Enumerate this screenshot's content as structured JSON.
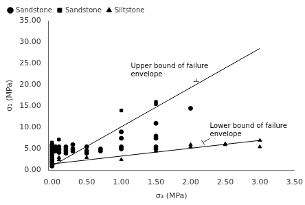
{
  "chart_data": {
    "type": "scatter",
    "xlabel": "σ₃ (MPa)",
    "ylabel": "σ₁ (MPa)",
    "xlim": [
      -0.05,
      3.5
    ],
    "ylim": [
      0,
      35
    ],
    "xticks": [
      {
        "value": 0.0,
        "label": "0.00"
      },
      {
        "value": 0.5,
        "label": "0.50"
      },
      {
        "value": 1.0,
        "label": "1.00"
      },
      {
        "value": 1.5,
        "label": "1.50"
      },
      {
        "value": 2.0,
        "label": "2.00"
      },
      {
        "value": 2.5,
        "label": "2.50"
      },
      {
        "value": 3.0,
        "label": "3.00"
      },
      {
        "value": 3.5,
        "label": "3.50"
      }
    ],
    "yticks": [
      {
        "value": 0.0,
        "label": "0.00"
      },
      {
        "value": 5.0,
        "label": "5.00"
      },
      {
        "value": 10.0,
        "label": "10.00"
      },
      {
        "value": 15.0,
        "label": "15.00"
      },
      {
        "value": 20.0,
        "label": "20.00"
      },
      {
        "value": 25.0,
        "label": "25.00"
      },
      {
        "value": 30.0,
        "label": "30.00"
      },
      {
        "value": 35.0,
        "label": "35.00"
      }
    ],
    "grid": false,
    "legend": "upper left",
    "series": [
      {
        "name": "Sandstone",
        "type": "scatter",
        "marker": "circle",
        "color": "#000000",
        "x": [
          0.0,
          0.0,
          0.0,
          0.0,
          0.0,
          0.0,
          0.0,
          0.0,
          0.0,
          0.0,
          0.0,
          0.05,
          0.05,
          0.05,
          0.1,
          0.1,
          0.1,
          0.1,
          0.1,
          0.2,
          0.2,
          0.2,
          0.2,
          0.3,
          0.3,
          0.3,
          0.5,
          0.5,
          0.5,
          0.7,
          0.7,
          1.0,
          1.0,
          1.0,
          1.0,
          1.5,
          1.5,
          1.5,
          1.5,
          1.5,
          2.0
        ],
        "values": [
          1.0,
          1.5,
          2.0,
          2.5,
          3.0,
          3.5,
          4.0,
          4.5,
          5.0,
          5.5,
          6.0,
          5.5,
          5.0,
          4.5,
          5.5,
          5.0,
          4.8,
          4.5,
          4.2,
          5.5,
          5.0,
          4.5,
          4.0,
          6.0,
          5.0,
          4.5,
          5.5,
          4.5,
          4.0,
          5.0,
          4.5,
          9.0,
          7.5,
          5.5,
          5.0,
          11.0,
          8.0,
          7.5,
          5.5,
          5.0,
          14.5
        ]
      },
      {
        "name": "Sandstone",
        "type": "scatter",
        "marker": "square",
        "color": "#000000",
        "x": [
          0.0,
          0.0,
          0.0,
          0.1,
          0.1,
          1.0,
          1.0,
          1.5,
          1.5
        ],
        "values": [
          6.5,
          5.5,
          5.0,
          7.2,
          5.5,
          14.0,
          9.0,
          16.0,
          15.5
        ]
      },
      {
        "name": "Siltstone",
        "type": "scatter",
        "marker": "triangle",
        "color": "#000000",
        "x": [
          0.0,
          0.0,
          0.0,
          0.0,
          0.1,
          0.1,
          0.5,
          1.0,
          1.5,
          1.5,
          2.0,
          2.0,
          2.5,
          2.5,
          3.0,
          3.0
        ],
        "values": [
          1.0,
          1.5,
          2.0,
          2.5,
          3.0,
          2.5,
          3.0,
          2.5,
          5.0,
          4.5,
          6.0,
          5.5,
          6.0,
          6.2,
          7.0,
          5.5
        ]
      },
      {
        "type": "line",
        "color": "#000000",
        "x": [
          0,
          3.0
        ],
        "values": [
          1.0,
          28.5
        ]
      },
      {
        "type": "line",
        "color": "#000000",
        "x": [
          0,
          3.0
        ],
        "values": [
          1.5,
          7.0
        ]
      }
    ],
    "annotations": [
      {
        "text": "Upper bound of failure\nenvelope",
        "x": 2.08,
        "y": 20.8
      },
      {
        "text": "Lower bound of failure\nenvelope",
        "x": 2.18,
        "y": 6.5
      }
    ]
  }
}
